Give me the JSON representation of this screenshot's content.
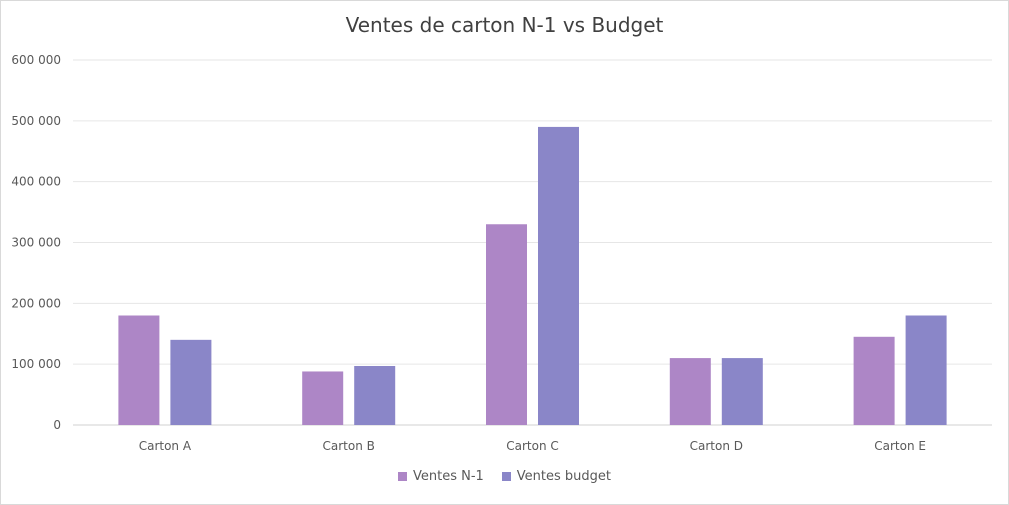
{
  "chart_data": {
    "type": "bar",
    "title": "Ventes de carton N-1 vs Budget",
    "categories": [
      "Carton A",
      "Carton B",
      "Carton C",
      "Carton D",
      "Carton E"
    ],
    "series": [
      {
        "name": "Ventes N-1",
        "color": "#ad86c6",
        "values": [
          180000,
          88000,
          330000,
          110000,
          145000
        ]
      },
      {
        "name": "Ventes budget",
        "color": "#8a86c8",
        "values": [
          140000,
          97000,
          490000,
          110000,
          180000
        ]
      }
    ],
    "ylim": [
      0,
      600000
    ],
    "yticks": [
      0,
      100000,
      200000,
      300000,
      400000,
      500000,
      600000
    ],
    "ytick_labels": [
      "0",
      "100 000",
      "200 000",
      "300 000",
      "400 000",
      "500 000",
      "600 000"
    ],
    "grid": true,
    "legend_position": "bottom"
  }
}
